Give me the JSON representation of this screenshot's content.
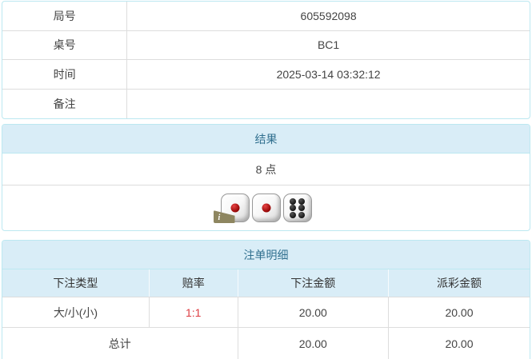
{
  "info_table": {
    "rows": [
      {
        "label": "局号",
        "value": "605592098"
      },
      {
        "label": "桌号",
        "value": "BC1"
      },
      {
        "label": "时间",
        "value": "2025-03-14 03:32:12"
      },
      {
        "label": "备注",
        "value": ""
      }
    ]
  },
  "result_panel": {
    "title": "结果",
    "points": "8 点",
    "dice": [
      1,
      1,
      6
    ],
    "info_badge": "i"
  },
  "bets_panel": {
    "title": "注单明细",
    "columns": [
      "下注类型",
      "赔率",
      "下注金额",
      "派彩金额"
    ],
    "rows": [
      {
        "bet_type": "大/小(小)",
        "odds": "1:1",
        "bet_amount": "20.00",
        "payout_amount": "20.00"
      }
    ],
    "total_label": "总计",
    "total_bet_amount": "20.00",
    "total_payout_amount": "20.00"
  },
  "colors": {
    "panel_border": "#bce8f1",
    "panel_heading_bg": "#d9edf7",
    "panel_heading_text": "#31708f",
    "odds_red": "#dd3c41",
    "row_divider": "#dddddd",
    "body_text": "#444444",
    "badge_bg": "#8e8660"
  }
}
